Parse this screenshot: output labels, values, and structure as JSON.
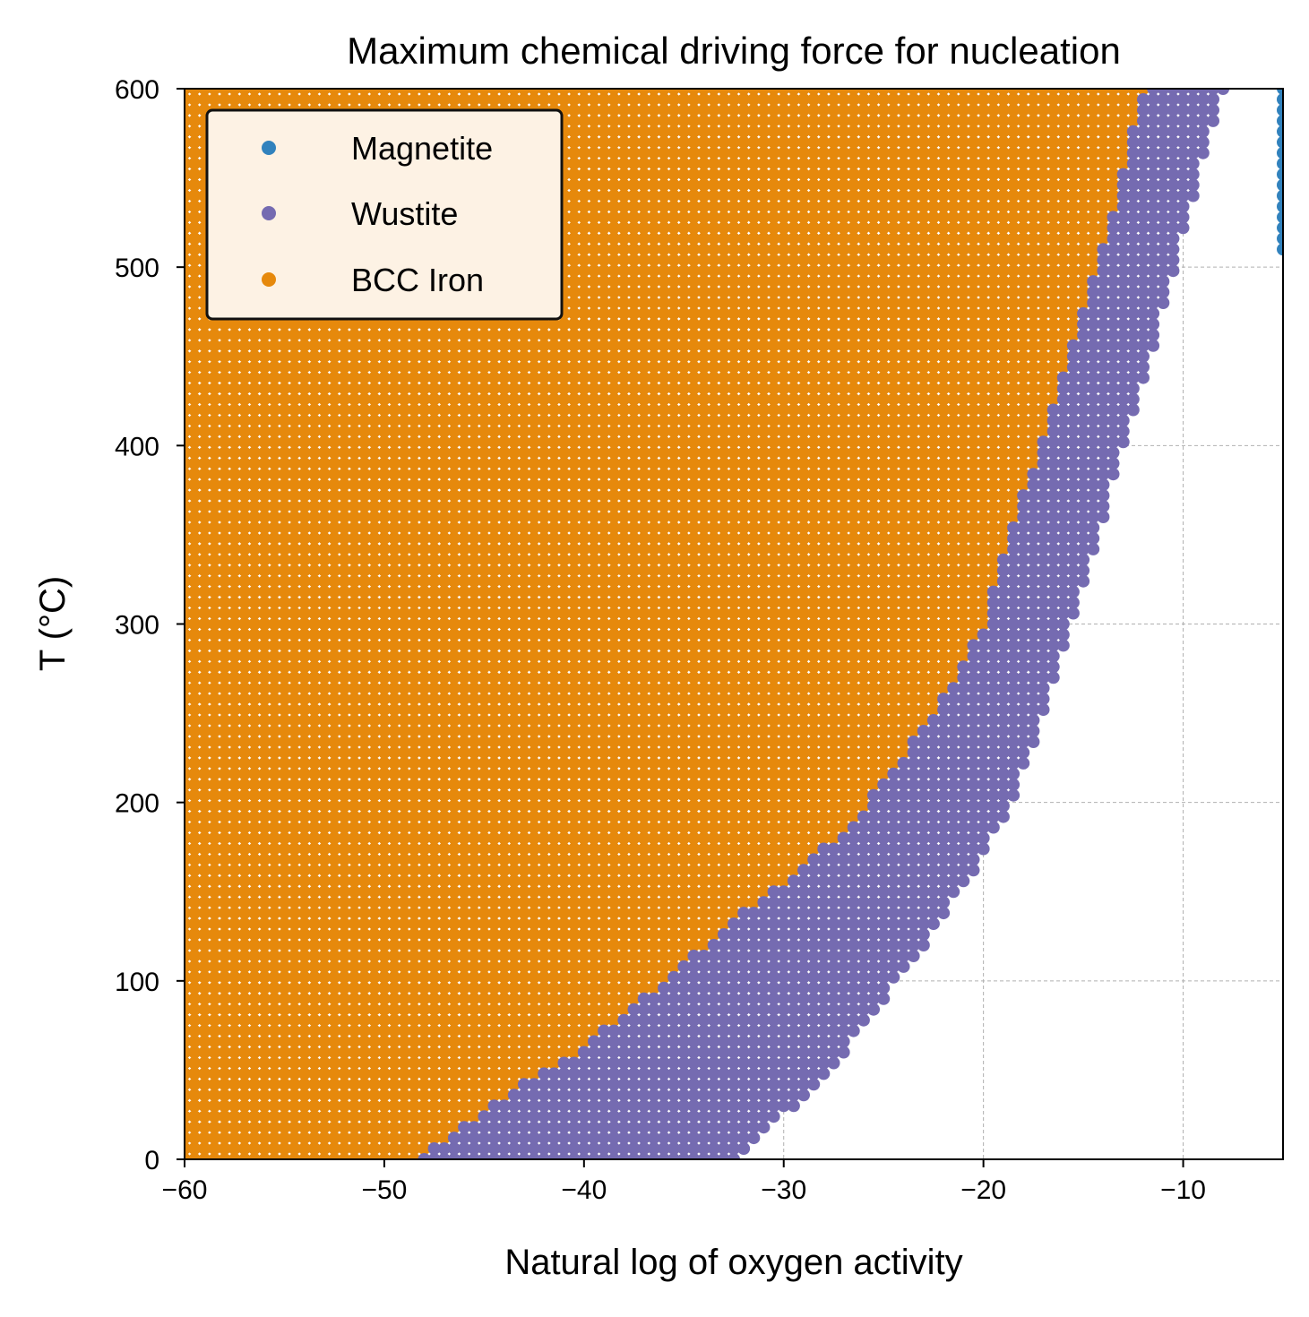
{
  "chart_data": {
    "type": "scatter",
    "title": "Maximum chemical driving force for nucleation",
    "xlabel": "Natural log of oxygen activity",
    "ylabel": "T (°C)",
    "xlim": [
      -60,
      -5
    ],
    "ylim": [
      0,
      600
    ],
    "x_ticks": [
      -60,
      -50,
      -40,
      -30,
      -20,
      -10
    ],
    "x_tick_labels": [
      "−60",
      "−50",
      "−40",
      "−30",
      "−20",
      "−10"
    ],
    "y_ticks": [
      0,
      100,
      200,
      300,
      400,
      500,
      600
    ],
    "y_tick_labels": [
      "0",
      "100",
      "200",
      "300",
      "400",
      "500",
      "600"
    ],
    "grid": true,
    "legend_position": "upper-left",
    "marker_spacing": {
      "x": 0.5,
      "y": 6
    },
    "series": [
      {
        "name": "Magnetite",
        "color": "#3182bd",
        "region": "x from right edge boundary to -5, for T >= 505",
        "boundary": {
          "T": [
            505,
            600
          ],
          "x_min": [
            -5.1,
            -5.1
          ]
        }
      },
      {
        "name": "Wustite",
        "color": "#756bb1",
        "region": "between BCC Iron boundary and upper boundary",
        "upper_boundary": {
          "T": [
            0,
            20,
            40,
            60,
            80,
            100,
            120,
            140,
            160,
            180,
            200,
            240,
            280,
            320,
            360,
            400,
            440,
            480,
            520,
            560,
            600
          ],
          "x": [
            -32.5,
            -30.5,
            -28.5,
            -27.0,
            -25.6,
            -24.3,
            -23.0,
            -21.8,
            -20.6,
            -19.6,
            -18.6,
            -17.3,
            -16.2,
            -15.1,
            -14.0,
            -13.0,
            -11.9,
            -10.9,
            -10.0,
            -9.0,
            -8.0
          ]
        }
      },
      {
        "name": "BCC Iron",
        "color": "#e6890c",
        "region": "from left axis to boundary",
        "boundary": {
          "T": [
            0,
            20,
            40,
            60,
            80,
            100,
            120,
            140,
            160,
            180,
            200,
            220,
            240,
            260,
            280,
            300,
            340,
            380,
            420,
            460,
            500,
            540,
            580,
            600
          ],
          "x": [
            -48.3,
            -46.0,
            -43.5,
            -40.5,
            -38.2,
            -36.0,
            -34.0,
            -31.8,
            -29.3,
            -27.5,
            -25.8,
            -24.5,
            -23.2,
            -22.0,
            -21.0,
            -20.0,
            -19.0,
            -17.8,
            -16.6,
            -15.4,
            -14.3,
            -13.3,
            -12.5,
            -12.0
          ]
        }
      }
    ]
  }
}
